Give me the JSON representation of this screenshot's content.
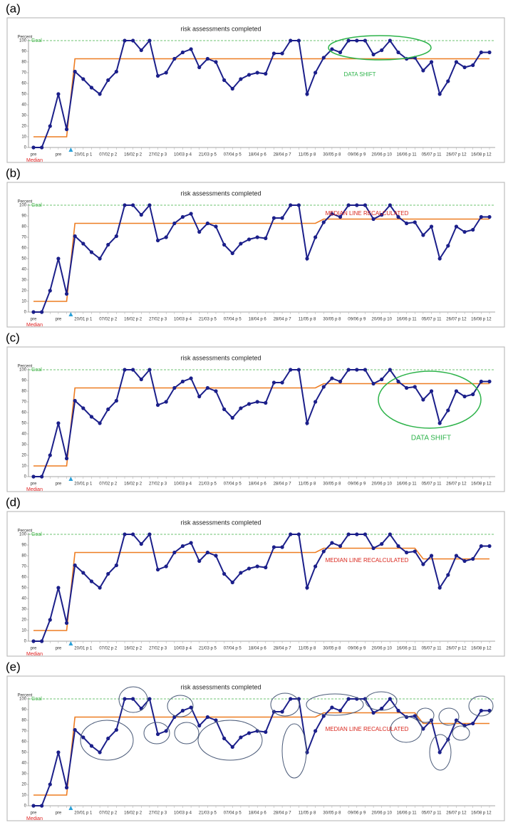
{
  "chart_data": [
    {
      "type": "line",
      "panel_label": "(a)",
      "title": "risk assessments completed",
      "y_label": "Percent",
      "goal_label": "Goal",
      "goal": 100,
      "goal_color": "#3cb043",
      "annotation": "DATA SHIFT",
      "annotation_color": "#2db34a",
      "ylim": [
        0,
        100
      ],
      "yticks": [
        0,
        10,
        20,
        30,
        40,
        50,
        60,
        70,
        80,
        90,
        100
      ],
      "categories": [
        "pre",
        null,
        null,
        "pre",
        null,
        null,
        "20/01 p 1",
        null,
        null,
        "07/02 p 2",
        null,
        null,
        "16/02 p 2",
        null,
        null,
        "27/02 p 3",
        null,
        null,
        "10/03 p 4",
        null,
        null,
        "21/03 p 5",
        null,
        null,
        "07/04 p 5",
        null,
        null,
        "18/04 p 6",
        null,
        null,
        "28/04 p 7",
        null,
        null,
        "11/05 p 8",
        null,
        null,
        "30/05 p 8",
        null,
        null,
        "09/06 p 9",
        null,
        null,
        "20/06 p 10",
        null,
        null,
        "16/06 p 11",
        null,
        null,
        "05/07 p 11",
        null,
        null,
        "26/07 p 12",
        null,
        null,
        "16/08 p 12",
        null
      ],
      "series": [
        {
          "name": null,
          "color": "#1b1f8a",
          "values": [
            0,
            0,
            20,
            50,
            17,
            71,
            64,
            56,
            50,
            63,
            71,
            100,
            100,
            91,
            100,
            67,
            70,
            83,
            89,
            92,
            75,
            83,
            80,
            63,
            55,
            64,
            68,
            70,
            69,
            88,
            88,
            100,
            100,
            50,
            70,
            84,
            92,
            89,
            100,
            100,
            100,
            87,
            91,
            100,
            89,
            83,
            84,
            72,
            80,
            50,
            62,
            80,
            75,
            77,
            89,
            89
          ]
        },
        {
          "name": "Median",
          "color": "#ee7d22",
          "legend_color": "#e02020",
          "values": [
            10,
            10,
            10,
            10,
            10,
            83,
            83,
            83,
            83,
            83,
            83,
            83,
            83,
            83,
            83,
            83,
            83,
            83,
            83,
            83,
            83,
            83,
            83,
            83,
            83,
            83,
            83,
            83,
            83,
            83,
            83,
            83,
            83,
            83,
            83,
            83,
            83,
            83,
            83,
            83,
            83,
            83,
            83,
            83,
            83,
            83,
            83,
            83,
            83,
            83,
            83,
            83,
            83,
            83,
            83,
            83
          ]
        }
      ]
    },
    {
      "type": "line",
      "panel_label": "(b)",
      "title": "risk assessments completed",
      "y_label": "Percent",
      "goal_label": "Goal",
      "goal": 100,
      "goal_color": "#3cb043",
      "annotation": "MEDIAN LINE RECALCULATED",
      "annotation_color": "#d9261c",
      "ylim": [
        0,
        100
      ],
      "yticks": [
        0,
        10,
        20,
        30,
        40,
        50,
        60,
        70,
        80,
        90,
        100
      ],
      "categories": [
        "pre",
        null,
        null,
        "pre",
        null,
        null,
        "20/01 p 1",
        null,
        null,
        "07/02 p 2",
        null,
        null,
        "16/02 p 2",
        null,
        null,
        "27/02 p 3",
        null,
        null,
        "10/03 p 4",
        null,
        null,
        "21/03 p 5",
        null,
        null,
        "07/04 p 5",
        null,
        null,
        "18/04 p 6",
        null,
        null,
        "28/04 p 7",
        null,
        null,
        "11/05 p 8",
        null,
        null,
        "30/05 p 8",
        null,
        null,
        "09/06 p 9",
        null,
        null,
        "20/06 p 10",
        null,
        null,
        "16/06 p 11",
        null,
        null,
        "05/07 p 11",
        null,
        null,
        "26/07 p 12",
        null,
        null,
        "16/08 p 12",
        null
      ],
      "series": [
        {
          "name": null,
          "color": "#1b1f8a",
          "values": [
            0,
            0,
            20,
            50,
            17,
            71,
            64,
            56,
            50,
            63,
            71,
            100,
            100,
            91,
            100,
            67,
            70,
            83,
            89,
            92,
            75,
            83,
            80,
            63,
            55,
            64,
            68,
            70,
            69,
            88,
            88,
            100,
            100,
            50,
            70,
            84,
            92,
            89,
            100,
            100,
            100,
            87,
            91,
            100,
            89,
            83,
            84,
            72,
            80,
            50,
            62,
            80,
            75,
            77,
            89,
            89
          ]
        },
        {
          "name": "Median",
          "color": "#ee7d22",
          "legend_color": "#e02020",
          "values": [
            10,
            10,
            10,
            10,
            10,
            83,
            83,
            83,
            83,
            83,
            83,
            83,
            83,
            83,
            83,
            83,
            83,
            83,
            83,
            83,
            83,
            83,
            83,
            83,
            83,
            83,
            83,
            83,
            83,
            83,
            83,
            83,
            83,
            83,
            83,
            87,
            87,
            87,
            87,
            87,
            87,
            87,
            87,
            87,
            87,
            87,
            87,
            87,
            87,
            87,
            87,
            87,
            87,
            87,
            87,
            87
          ]
        }
      ]
    },
    {
      "type": "line",
      "panel_label": "(c)",
      "title": "risk assessments completed",
      "y_label": "Percent",
      "goal_label": "Goal",
      "goal": 100,
      "goal_color": "#3cb043",
      "annotation": "DATA SHIFT",
      "annotation_color": "#2db34a",
      "ylim": [
        0,
        100
      ],
      "yticks": [
        0,
        10,
        20,
        30,
        40,
        50,
        60,
        70,
        80,
        90,
        100
      ],
      "categories": [
        "pre",
        null,
        null,
        "pre",
        null,
        null,
        "20/01 p 1",
        null,
        null,
        "07/02 p 2",
        null,
        null,
        "16/02 p 2",
        null,
        null,
        "27/02 p 3",
        null,
        null,
        "10/03 p 4",
        null,
        null,
        "21/03 p 5",
        null,
        null,
        "07/04 p 5",
        null,
        null,
        "18/04 p 6",
        null,
        null,
        "28/04 p 7",
        null,
        null,
        "11/05 p 8",
        null,
        null,
        "30/05 p 8",
        null,
        null,
        "09/06 p 9",
        null,
        null,
        "20/06 p 10",
        null,
        null,
        "16/06 p 11",
        null,
        null,
        "05/07 p 11",
        null,
        null,
        "26/07 p 12",
        null,
        null,
        "16/08 p 12",
        null
      ],
      "series": [
        {
          "name": null,
          "color": "#1b1f8a",
          "values": [
            0,
            0,
            20,
            50,
            17,
            71,
            64,
            56,
            50,
            63,
            71,
            100,
            100,
            91,
            100,
            67,
            70,
            83,
            89,
            92,
            75,
            83,
            80,
            63,
            55,
            64,
            68,
            70,
            69,
            88,
            88,
            100,
            100,
            50,
            70,
            84,
            92,
            89,
            100,
            100,
            100,
            87,
            91,
            100,
            89,
            83,
            84,
            72,
            80,
            50,
            62,
            80,
            75,
            77,
            89,
            89
          ]
        },
        {
          "name": "Median",
          "color": "#ee7d22",
          "legend_color": "#e02020",
          "values": [
            10,
            10,
            10,
            10,
            10,
            83,
            83,
            83,
            83,
            83,
            83,
            83,
            83,
            83,
            83,
            83,
            83,
            83,
            83,
            83,
            83,
            83,
            83,
            83,
            83,
            83,
            83,
            83,
            83,
            83,
            83,
            83,
            83,
            83,
            83,
            87,
            87,
            87,
            87,
            87,
            87,
            87,
            87,
            87,
            87,
            87,
            87,
            87,
            87,
            87,
            87,
            87,
            87,
            87,
            87,
            87
          ]
        }
      ]
    },
    {
      "type": "line",
      "panel_label": "(d)",
      "title": "risk assessments completed",
      "y_label": "Percent",
      "goal_label": "Goal",
      "goal": 100,
      "goal_color": "#3cb043",
      "annotation": "MEDIAN LINE RECALCULATED",
      "annotation_color": "#d9261c",
      "ylim": [
        0,
        100
      ],
      "yticks": [
        0,
        10,
        20,
        30,
        40,
        50,
        60,
        70,
        80,
        90,
        100
      ],
      "categories": [
        "pre",
        null,
        null,
        "pre",
        null,
        null,
        "20/01 p 1",
        null,
        null,
        "07/02 p 2",
        null,
        null,
        "16/02 p 2",
        null,
        null,
        "27/02 p 3",
        null,
        null,
        "10/03 p 4",
        null,
        null,
        "21/03 p 5",
        null,
        null,
        "07/04 p 5",
        null,
        null,
        "18/04 p 6",
        null,
        null,
        "28/04 p 7",
        null,
        null,
        "11/05 p 8",
        null,
        null,
        "30/05 p 8",
        null,
        null,
        "09/06 p 9",
        null,
        null,
        "20/06 p 10",
        null,
        null,
        "16/06 p 11",
        null,
        null,
        "05/07 p 11",
        null,
        null,
        "26/07 p 12",
        null,
        null,
        "16/08 p 12",
        null
      ],
      "series": [
        {
          "name": null,
          "color": "#1b1f8a",
          "values": [
            0,
            0,
            20,
            50,
            17,
            71,
            64,
            56,
            50,
            63,
            71,
            100,
            100,
            91,
            100,
            67,
            70,
            83,
            89,
            92,
            75,
            83,
            80,
            63,
            55,
            64,
            68,
            70,
            69,
            88,
            88,
            100,
            100,
            50,
            70,
            84,
            92,
            89,
            100,
            100,
            100,
            87,
            91,
            100,
            89,
            83,
            84,
            72,
            80,
            50,
            62,
            80,
            75,
            77,
            89,
            89
          ]
        },
        {
          "name": "Median",
          "color": "#ee7d22",
          "legend_color": "#e02020",
          "values": [
            10,
            10,
            10,
            10,
            10,
            83,
            83,
            83,
            83,
            83,
            83,
            83,
            83,
            83,
            83,
            83,
            83,
            83,
            83,
            83,
            83,
            83,
            83,
            83,
            83,
            83,
            83,
            83,
            83,
            83,
            83,
            83,
            83,
            83,
            83,
            87,
            87,
            87,
            87,
            87,
            87,
            87,
            87,
            87,
            87,
            87,
            87,
            77,
            77,
            77,
            77,
            77,
            77,
            77,
            77,
            77
          ]
        }
      ]
    },
    {
      "type": "line",
      "panel_label": "(e)",
      "title": "risk assessments completed",
      "y_label": "Percent",
      "goal_label": "Goal",
      "goal": 100,
      "goal_color": "#3cb043",
      "annotation": "MEDIAN LINE RECALCULATED",
      "annotation_color": "#d9261c",
      "ylim": [
        0,
        100
      ],
      "yticks": [
        0,
        10,
        20,
        30,
        40,
        50,
        60,
        70,
        80,
        90,
        100
      ],
      "categories": [
        "pre",
        null,
        null,
        "pre",
        null,
        null,
        "20/01 p 1",
        null,
        null,
        "07/02 p 2",
        null,
        null,
        "16/02 p 2",
        null,
        null,
        "27/02 p 3",
        null,
        null,
        "10/03 p 4",
        null,
        null,
        "21/03 p 5",
        null,
        null,
        "07/04 p 5",
        null,
        null,
        "18/04 p 6",
        null,
        null,
        "28/04 p 7",
        null,
        null,
        "11/05 p 8",
        null,
        null,
        "30/05 p 8",
        null,
        null,
        "09/06 p 9",
        null,
        null,
        "20/06 p 10",
        null,
        null,
        "16/06 p 11",
        null,
        null,
        "05/07 p 11",
        null,
        null,
        "26/07 p 12",
        null,
        null,
        "16/08 p 12",
        null
      ],
      "series": [
        {
          "name": null,
          "color": "#1b1f8a",
          "values": [
            0,
            0,
            20,
            50,
            17,
            71,
            64,
            56,
            50,
            63,
            71,
            100,
            100,
            91,
            100,
            67,
            70,
            83,
            89,
            92,
            75,
            83,
            80,
            63,
            55,
            64,
            68,
            70,
            69,
            88,
            88,
            100,
            100,
            50,
            70,
            84,
            92,
            89,
            100,
            100,
            100,
            87,
            91,
            100,
            89,
            83,
            84,
            72,
            80,
            50,
            62,
            80,
            75,
            77,
            89,
            89
          ]
        },
        {
          "name": "Median",
          "color": "#ee7d22",
          "legend_color": "#e02020",
          "values": [
            10,
            10,
            10,
            10,
            10,
            83,
            83,
            83,
            83,
            83,
            83,
            83,
            83,
            83,
            83,
            83,
            83,
            83,
            83,
            83,
            83,
            83,
            83,
            83,
            83,
            83,
            83,
            83,
            83,
            83,
            83,
            83,
            83,
            83,
            83,
            87,
            87,
            87,
            87,
            87,
            87,
            87,
            87,
            87,
            87,
            87,
            87,
            77,
            77,
            77,
            77,
            77,
            77,
            77,
            77,
            77
          ]
        }
      ]
    }
  ]
}
